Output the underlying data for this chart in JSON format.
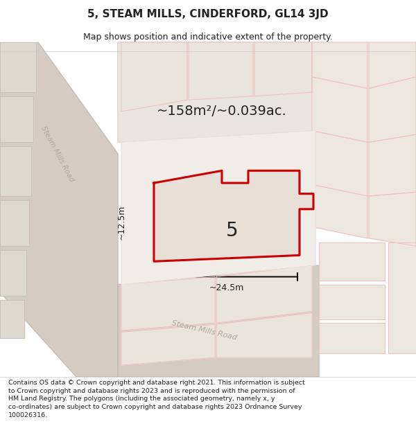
{
  "title": "5, STEAM MILLS, CINDERFORD, GL14 3JD",
  "subtitle": "Map shows position and indicative extent of the property.",
  "area_text": "~158m²/~0.039ac.",
  "label_number": "5",
  "dim_width": "~24.5m",
  "dim_height": "~12.5m",
  "footer_lines": [
    "Contains OS data © Crown copyright and database right 2021. This information is subject",
    "to Crown copyright and database rights 2023 and is reproduced with the permission of",
    "HM Land Registry. The polygons (including the associated geometry, namely x, y",
    "co-ordinates) are subject to Crown copyright and database rights 2023 Ordnance Survey",
    "100026316."
  ],
  "map_bg": "#f0ece8",
  "road_color_light": "#f0c0c0",
  "block_color": "#ddd8d0",
  "block_outline": "#c8bcb4",
  "plot_outline_color": "#cc0000",
  "plot_fill_color": "#e8e0d8",
  "dim_line_color": "#111111",
  "text_color": "#222222",
  "road_label_color": "#b0a8a0",
  "footer_bg": "#ffffff",
  "white": "#ffffff"
}
